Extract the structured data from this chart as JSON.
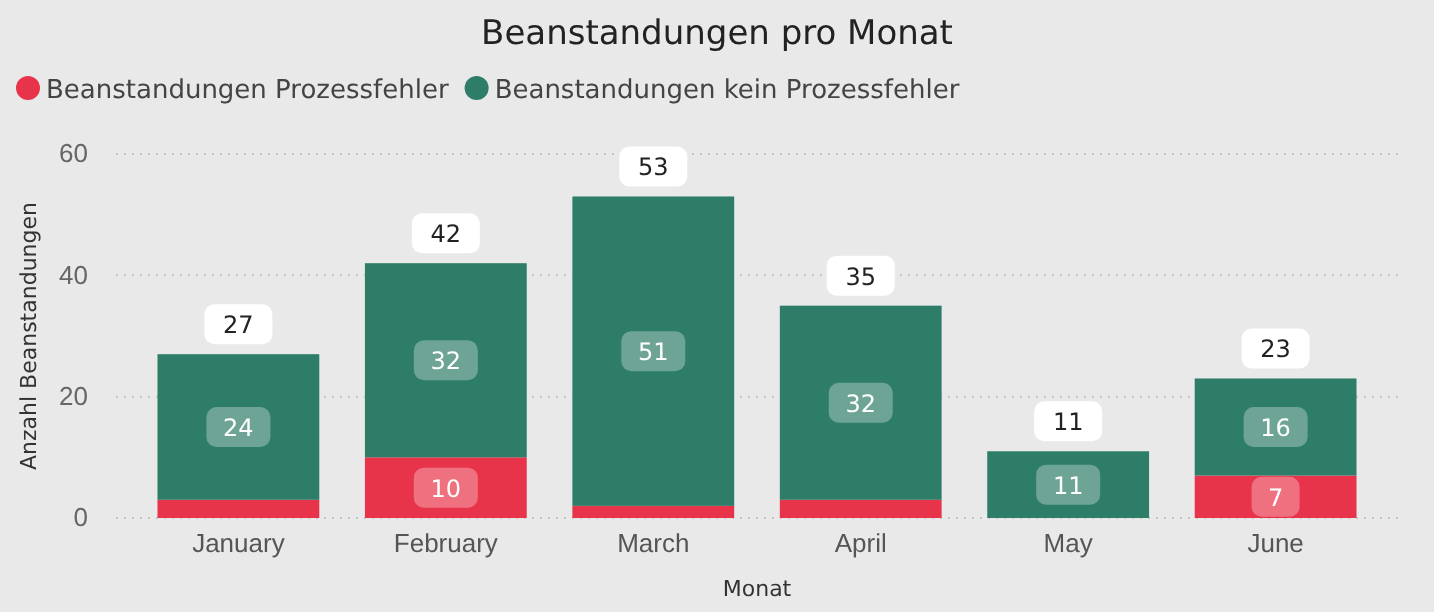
{
  "chart_data": {
    "type": "bar",
    "title": "Beanstandungen pro Monat",
    "xlabel": "Monat",
    "ylabel": "Anzahl Beanstandungen",
    "categories": [
      "January",
      "February",
      "March",
      "April",
      "May",
      "June"
    ],
    "stacked": true,
    "ylim": [
      0,
      60
    ],
    "yticks": [
      0,
      20,
      40,
      60
    ],
    "grid": "y",
    "legend": "top left",
    "series": [
      {
        "name": "Beanstandungen Prozessfehler",
        "color": "#e8344a",
        "values": [
          3,
          10,
          2,
          3,
          0,
          7
        ],
        "value_labels": [
          null,
          "10",
          null,
          null,
          null,
          "7"
        ]
      },
      {
        "name": "Beanstandungen kein Prozessfehler",
        "color": "#2e7d69",
        "values": [
          24,
          32,
          51,
          32,
          11,
          16
        ],
        "value_labels": [
          "24",
          "32",
          "51",
          "32",
          "11",
          "16"
        ]
      }
    ],
    "totals": [
      "27",
      "42",
      "53",
      "35",
      "11",
      "23"
    ]
  }
}
